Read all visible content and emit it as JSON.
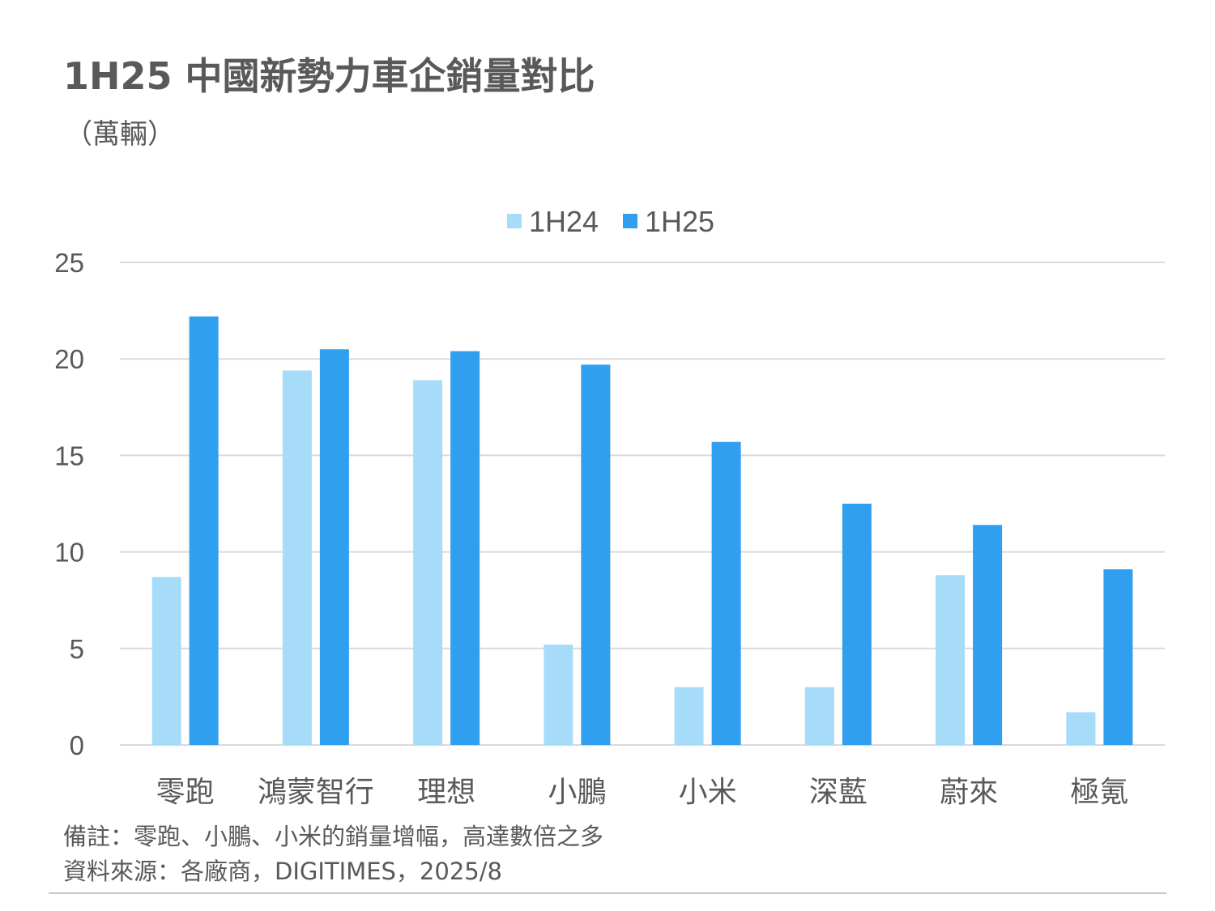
{
  "title": "1H25 中國新勢力車企銷量對比",
  "subtitle": "（萬輛）",
  "notes": {
    "remark": "備註：零跑、小鵬、小米的銷量增幅，高達數倍之多",
    "source": "資料來源：各廠商，DIGITIMES，2025/8"
  },
  "chart_data": {
    "type": "bar",
    "categories": [
      "零跑",
      "鴻蒙智行",
      "理想",
      "小鵬",
      "小米",
      "深藍",
      "蔚來",
      "極氪"
    ],
    "series": [
      {
        "name": "1H24",
        "color": "#a6dcfa",
        "values": [
          8.7,
          19.4,
          18.9,
          5.2,
          3.0,
          3.0,
          8.8,
          1.7
        ]
      },
      {
        "name": "1H25",
        "color": "#319ff0",
        "values": [
          22.2,
          20.5,
          20.4,
          19.7,
          15.7,
          12.5,
          11.4,
          9.1
        ]
      }
    ],
    "yticks": [
      "0",
      "5",
      "10",
      "15",
      "20",
      "25"
    ],
    "ylim": [
      0,
      25
    ],
    "grid": true,
    "legend": "top-center"
  }
}
